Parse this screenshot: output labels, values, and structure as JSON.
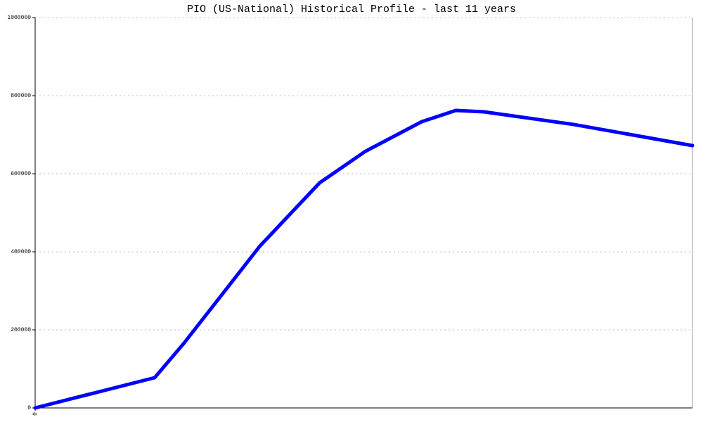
{
  "chart_data": {
    "type": "line",
    "title": "PIO (US-National) Historical Profile - last 11 years",
    "x": [
      0,
      2,
      2.49,
      3.76,
      4.76,
      5.53,
      6.47,
      7.04,
      7.51,
      9.0,
      11.0
    ],
    "series": [
      {
        "color": "#0000ff",
        "values": [
          0,
          77500,
          165800,
          414400,
          576600,
          657700,
          733300,
          762200,
          758600,
          726500,
          672100
        ]
      }
    ],
    "xlim": [
      0,
      11
    ],
    "xticks": [
      0
    ],
    "ylim": [
      0,
      1000000
    ],
    "yticks": [
      0,
      200000,
      400000,
      600000,
      800000,
      1000000
    ],
    "grid": true
  }
}
